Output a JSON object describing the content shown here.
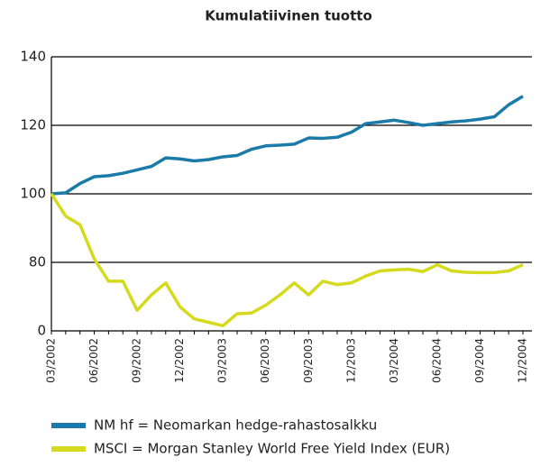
{
  "chart_data": {
    "type": "line",
    "title": "Kumulatiivinen tuotto",
    "categories": [
      "03/2002",
      null,
      null,
      "06/2002",
      null,
      null,
      "09/2002",
      null,
      null,
      "12/2002",
      null,
      null,
      "03/2003",
      null,
      null,
      "06/2003",
      null,
      null,
      "09/2003",
      null,
      null,
      "12/2003",
      null,
      null,
      "03/2004",
      null,
      null,
      "06/2004",
      null,
      null,
      "09/2004",
      null,
      null,
      "12/2004"
    ],
    "series": [
      {
        "name": "NM hf = Neomarkan hedge-rahastosalkku",
        "color": "#1b7ba8",
        "values": [
          100,
          100.3,
          103,
          105,
          105.3,
          106,
          107,
          108,
          110.5,
          110.2,
          109.6,
          110,
          110.8,
          111.2,
          113,
          114,
          114.2,
          114.5,
          116.3,
          116.2,
          116.5,
          118,
          120.5,
          121,
          121.5,
          120.8,
          120,
          120.5,
          121,
          121.3,
          121.8,
          122.5,
          126,
          128.5
        ]
      },
      {
        "name": "MSCI = Morgan Stanley World Free Yield Index (EUR)",
        "color": "#d6da1e",
        "values": [
          100,
          93.5,
          91,
          81,
          74.5,
          74.5,
          66,
          70.5,
          74,
          67,
          63.5,
          62.5,
          61.5,
          65,
          65.2,
          67.5,
          70.5,
          74,
          70.5,
          74.5,
          73.5,
          74,
          76,
          77.5,
          77.8,
          78,
          77.3,
          79.3,
          77.5,
          77.1,
          77,
          77,
          77.5,
          79.3
        ]
      }
    ],
    "ylim": [
      60,
      140
    ],
    "yticks": [
      {
        "value": 60,
        "label": "0"
      },
      80,
      100,
      120,
      140
    ],
    "grid": true
  }
}
